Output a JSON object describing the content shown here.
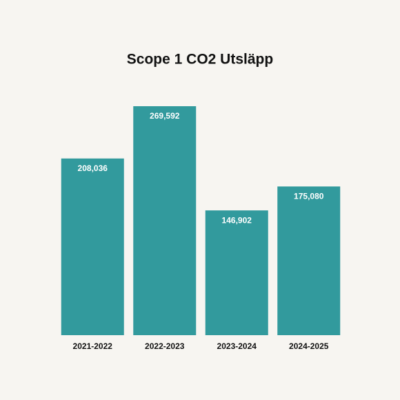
{
  "chart_data": {
    "type": "bar",
    "title": "Scope 1 CO2 Utsläpp",
    "categories": [
      "2021-2022",
      "2022-2023",
      "2023-2024",
      "2024-2025"
    ],
    "values": [
      208036,
      269592,
      146902,
      175080
    ],
    "value_labels": [
      "208,036",
      "269,592",
      "146,902",
      "175,080"
    ],
    "color": "#329a9d"
  }
}
